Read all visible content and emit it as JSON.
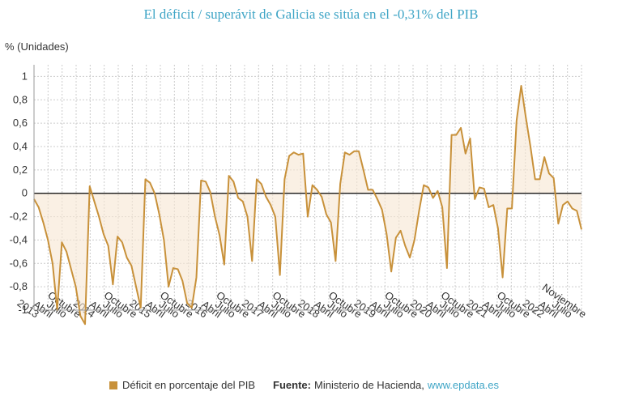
{
  "title": "El déficit / superávit de Galicia se sitúa en el -0,31% del PIB",
  "unit_label": "% (Unidades)",
  "legend": {
    "series_label": "Déficit en porcentaje del PIB",
    "color": "#c8913a"
  },
  "source": {
    "label": "Fuente:",
    "text": "Ministerio de Hacienda,",
    "link_text": "www.epdata.es"
  },
  "colors": {
    "line": "#c8913a",
    "fill": "#f6e6d2",
    "zero_line": "#000000",
    "grid": "#cccccc",
    "title": "#3fa5c6",
    "link": "#3fa5c6"
  },
  "chart_data": {
    "type": "area",
    "title": "El déficit / superávit de Galicia se sitúa en el -0,31% del PIB",
    "ylabel": "% (Unidades)",
    "xlabel": "",
    "ylim": [
      -1,
      1.1
    ],
    "grid": true,
    "y_ticks": [
      {
        "value": 1,
        "label": "1"
      },
      {
        "value": 0.8,
        "label": "0,8"
      },
      {
        "value": 0.6,
        "label": "0,6"
      },
      {
        "value": 0.4,
        "label": "0,4"
      },
      {
        "value": 0.2,
        "label": "0,2"
      },
      {
        "value": 0,
        "label": "0"
      },
      {
        "value": -0.2,
        "label": "-0,2"
      },
      {
        "value": -0.4,
        "label": "-0,4"
      },
      {
        "value": -0.6,
        "label": "-0,6"
      },
      {
        "value": -0.8,
        "label": "-0,8"
      },
      {
        "value": -1,
        "label": "-1"
      }
    ],
    "x_ticks": [
      "2013",
      "Abril",
      "Julio",
      "Octubre",
      "2014",
      "Abril",
      "Julio",
      "Octubre",
      "2015",
      "Abril",
      "Julio",
      "Octubre",
      "2016",
      "Abril",
      "Julio",
      "Octubre",
      "2017",
      "Abril",
      "Julio",
      "Octubre",
      "2018",
      "Abril",
      "Julio",
      "Octubre",
      "2019",
      "Abril",
      "Julio",
      "Octubre",
      "2020",
      "Abril",
      "Julio",
      "Octubre",
      "2021",
      "Abril",
      "Julio",
      "Octubre",
      "2022",
      "Abril",
      "Julio",
      "Noviembre"
    ],
    "series": [
      {
        "name": "Déficit en porcentaje del PIB",
        "values": [
          -0.05,
          -0.12,
          -0.25,
          -0.4,
          -0.6,
          -1.0,
          -0.42,
          -0.5,
          -0.65,
          -0.8,
          -1.05,
          -1.12,
          0.06,
          -0.07,
          -0.2,
          -0.35,
          -0.45,
          -0.78,
          -0.37,
          -0.42,
          -0.55,
          -0.62,
          -0.8,
          -0.98,
          0.12,
          0.09,
          0.0,
          -0.18,
          -0.4,
          -0.8,
          -0.64,
          -0.65,
          -0.75,
          -0.94,
          -0.98,
          -0.72,
          0.11,
          0.1,
          0.01,
          -0.2,
          -0.36,
          -0.61,
          0.15,
          0.1,
          -0.04,
          -0.07,
          -0.2,
          -0.58,
          0.12,
          0.08,
          -0.03,
          -0.1,
          -0.2,
          -0.7,
          0.12,
          0.32,
          0.35,
          0.33,
          0.34,
          -0.2,
          0.07,
          0.03,
          -0.03,
          -0.18,
          -0.25,
          -0.58,
          0.08,
          0.35,
          0.33,
          0.36,
          0.36,
          0.2,
          0.03,
          0.03,
          -0.05,
          -0.14,
          -0.35,
          -0.67,
          -0.38,
          -0.32,
          -0.45,
          -0.55,
          -0.4,
          -0.15,
          0.07,
          0.05,
          -0.04,
          0.02,
          -0.12,
          -0.64,
          0.5,
          0.5,
          0.56,
          0.34,
          0.47,
          -0.05,
          0.05,
          0.04,
          -0.12,
          -0.1,
          -0.3,
          -0.72,
          -0.13,
          -0.13,
          0.62,
          0.92,
          0.65,
          0.4,
          0.12,
          0.12,
          0.31,
          0.17,
          0.13,
          -0.26,
          -0.1,
          -0.07,
          -0.13,
          -0.15,
          -0.31
        ]
      }
    ]
  }
}
